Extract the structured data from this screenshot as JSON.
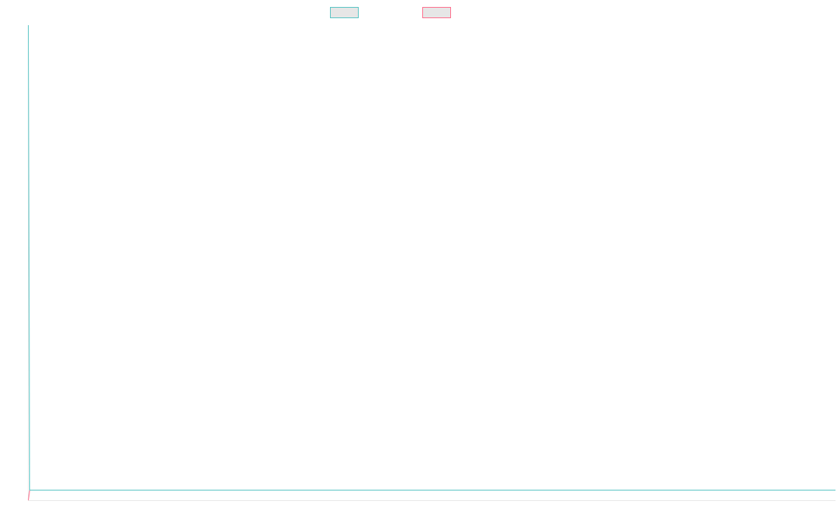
{
  "chart_data": {
    "type": "line",
    "x": [],
    "series": [
      {
        "name": "",
        "values": [],
        "color": "#4bc0c0",
        "fill": "#e6e6e6"
      },
      {
        "name": "",
        "values": [],
        "color": "#ff6384",
        "fill": "#e6e6e6"
      }
    ],
    "grid": false,
    "legend_position": "top"
  }
}
